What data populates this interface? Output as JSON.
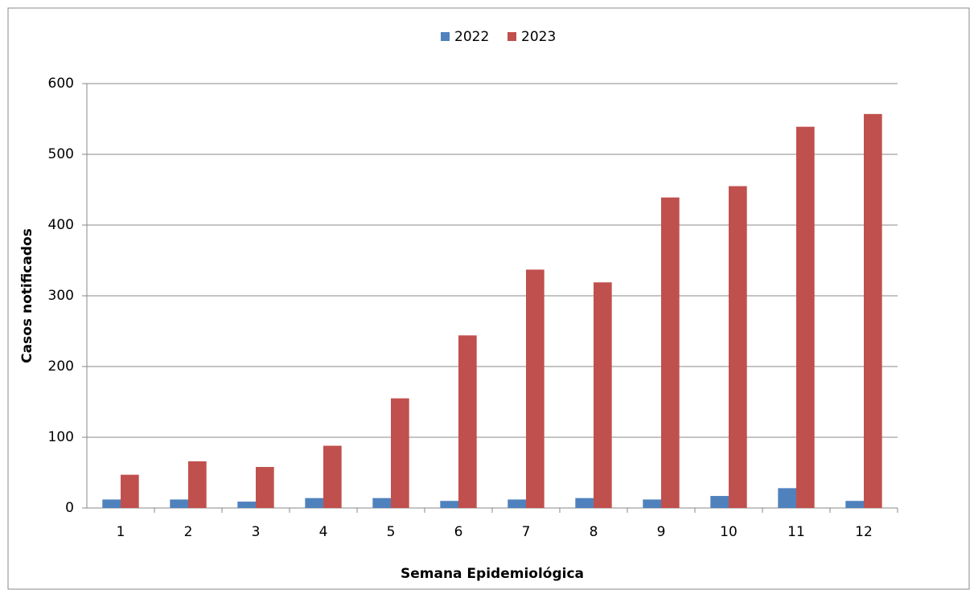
{
  "chart_data": {
    "type": "bar",
    "x_label": "Semana Epidemiológica",
    "y_label": "Casos notificados",
    "categories": [
      "1",
      "2",
      "3",
      "4",
      "5",
      "6",
      "7",
      "8",
      "9",
      "10",
      "11",
      "12"
    ],
    "series": [
      {
        "name": "2022",
        "color": "#4f81bd",
        "values": [
          12,
          12,
          9,
          14,
          14,
          10,
          12,
          14,
          12,
          17,
          28,
          10
        ]
      },
      {
        "name": "2023",
        "color": "#c0504d",
        "values": [
          47,
          66,
          58,
          88,
          155,
          244,
          337,
          319,
          439,
          455,
          539,
          557
        ]
      }
    ],
    "ylim": [
      0,
      600
    ],
    "yticks": [
      0,
      100,
      200,
      300,
      400,
      500,
      600
    ],
    "grid": true,
    "legend": "top"
  }
}
